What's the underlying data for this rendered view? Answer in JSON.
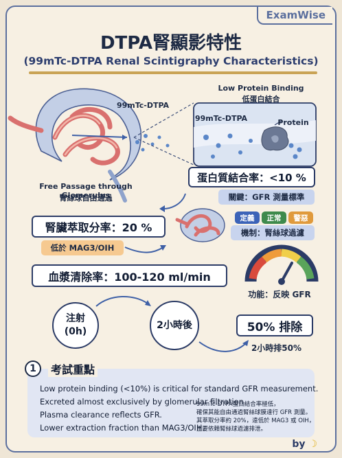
{
  "brand": "ExamWise",
  "title": "DTPA腎顯影特性",
  "subtitle": "(99mTc-DTPA Renal Scintigraphy Characteristics)",
  "illustration": {
    "tracer_label": "99mTc-DTPA",
    "tracer_label_zoom": "99mTc-DTPA",
    "protein_label": "Protein",
    "low_binding_en": "Low Protein Binding",
    "low_binding_zh": "低蛋白結合",
    "free_passage_en": "Free Passage through Glomerulus",
    "free_passage_zh": "腎絲球自由通過"
  },
  "protein_binding": {
    "value": "蛋白質結合率：<10 %",
    "key": "關鍵：GFR 測量標準"
  },
  "extraction": {
    "value": "腎臟萃取分率：20 %",
    "note": "低於 MAG3/OIH"
  },
  "tags": [
    {
      "label": "定義",
      "color": "#3c63b8"
    },
    {
      "label": "正常",
      "color": "#3e8a4c"
    },
    {
      "label": "警惡",
      "color": "#e09a3c"
    }
  ],
  "mechanism": "機制：腎絲球過濾",
  "clearance": {
    "value": "血漿清除率：100-120 ml/min",
    "gauge_label": "功能：反映 GFR"
  },
  "timeline": {
    "inject_line1": "注射",
    "inject_line2": "(0h)",
    "after2h": "2小時後",
    "result": "50% 排除",
    "result_caption": "2小時排50%"
  },
  "key_points": {
    "number": "1",
    "heading": "考試重點",
    "lines": [
      "Low protein binding (<10%) is critical for standard GFR measurement.",
      "Excreted almost exclusively by glomerular filtration.",
      "Plasma clearance reflects GFR.",
      "Lower extraction fraction than MAG3/OIH."
    ],
    "note_lines": [
      "99mTc-DTPA蛋白結合率極低，",
      "確保其能自由通過腎絲球膜達行 GFR 測量。",
      "其萃取分率約 20%，遠低於 MAG3 或 OIH，",
      "主要依賴腎絲球過濾排泄。"
    ]
  },
  "footer": "by"
}
